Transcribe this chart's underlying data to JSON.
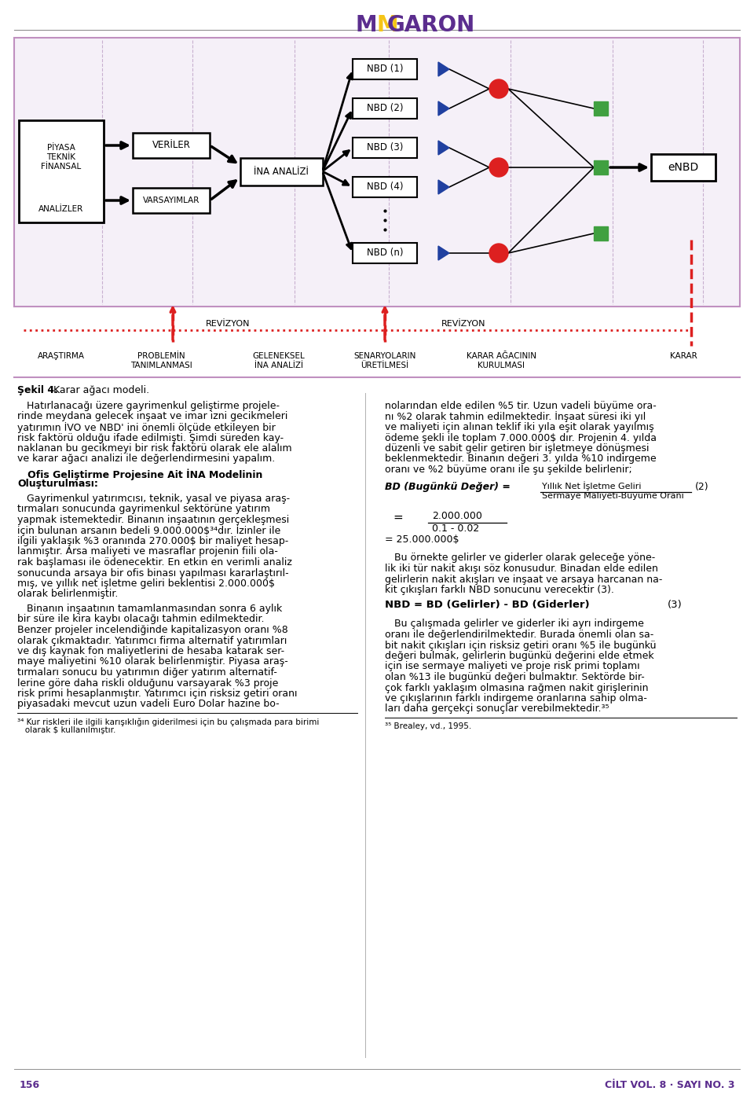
{
  "bg_color": "#ffffff",
  "border_color": "#c090c0",
  "diagram_bg": "#f5f0f8",
  "grid_color": "#d0c0d0",
  "circle_color": "#dd2020",
  "square_color": "#40a040",
  "triangle_color": "#2040a0",
  "red_dash_color": "#dd2020",
  "caption": "Şekil 4. Karar ağacı modeli.",
  "bottom_labels": [
    "ARAŞTIRMA",
    "PROBLEMİN\nTANIMLANMASI",
    "GELENEKSEL\nİNA ANALİZİ",
    "SENARYOLARIN\nÜRETİLMESİ",
    "KARAR AĞACININ\nKURULMASI",
    "KARAR"
  ],
  "page_number": "156",
  "journal_info": "CİLT VOL. 8 · SAYI NO. 3"
}
